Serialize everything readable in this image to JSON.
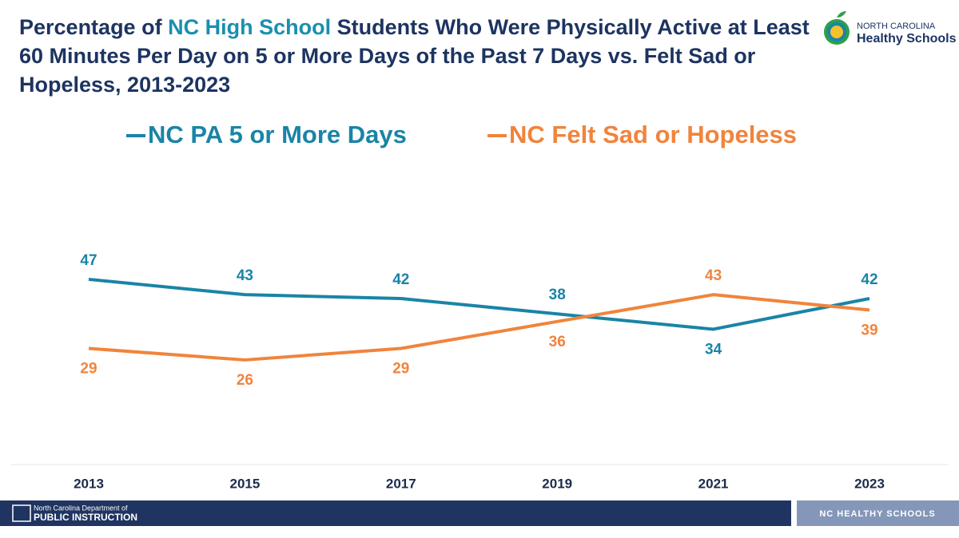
{
  "chart_data": {
    "type": "line",
    "title": [
      "Percentage of",
      "NC High School",
      "Students Who Were Physically Active at Least 60 Minutes Per Day on 5 or More Days of the Past 7 Days vs. Felt Sad or Hopeless, 2013-2023"
    ],
    "categories": [
      "2013",
      "2015",
      "2017",
      "2019",
      "2021",
      "2023"
    ],
    "series": [
      {
        "name": "NC PA 5 or More Days",
        "color": "#1a84a6",
        "values": [
          47,
          43,
          42,
          38,
          34,
          42
        ]
      },
      {
        "name": "NC Felt Sad or Hopeless",
        "color": "#f0843c",
        "values": [
          29,
          26,
          29,
          36,
          43,
          39
        ]
      }
    ],
    "ylim": [
      0,
      50
    ]
  },
  "logo": {
    "line1": "NORTH CAROLINA",
    "line2": "Healthy Schools"
  },
  "footer": {
    "dept_line1": "North Carolina Department of",
    "dept_line2": "PUBLIC INSTRUCTION",
    "right": "NC HEALTHY SCHOOLS"
  }
}
